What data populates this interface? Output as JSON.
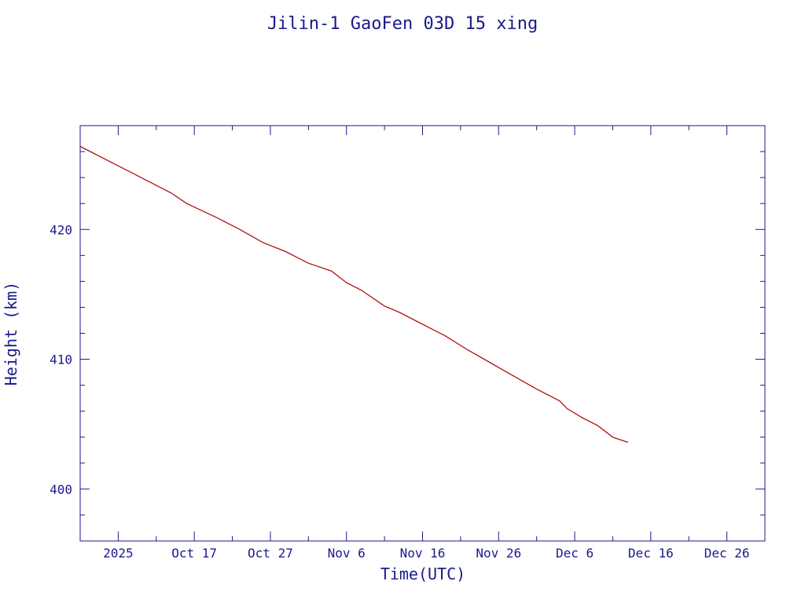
{
  "chart_data": {
    "type": "line",
    "title": "Jilin-1 GaoFen 03D 15 xing",
    "xlabel": "Time(UTC)",
    "ylabel": "Height (km)",
    "x_unit": "date (UTC)",
    "xlim": [
      "2025-10-02",
      "2025-12-31"
    ],
    "ylim": [
      396.0,
      428.0
    ],
    "x_tick_labels": [
      {
        "date": "2025-10-07",
        "label": "2025"
      },
      {
        "date": "2025-10-17",
        "label": "Oct 17"
      },
      {
        "date": "2025-10-27",
        "label": "Oct 27"
      },
      {
        "date": "2025-11-06",
        "label": "Nov  6"
      },
      {
        "date": "2025-11-16",
        "label": "Nov 16"
      },
      {
        "date": "2025-11-26",
        "label": "Nov 26"
      },
      {
        "date": "2025-12-06",
        "label": "Dec  6"
      },
      {
        "date": "2025-12-16",
        "label": "Dec 16"
      },
      {
        "date": "2025-12-26",
        "label": "Dec 26"
      }
    ],
    "x_major_ticks": [
      "2025-10-07",
      "2025-10-17",
      "2025-10-27",
      "2025-11-06",
      "2025-11-16",
      "2025-11-26",
      "2025-12-06",
      "2025-12-16",
      "2025-12-26"
    ],
    "x_minor_ticks": [
      "2025-10-12",
      "2025-10-22",
      "2025-11-01",
      "2025-11-11",
      "2025-11-21",
      "2025-12-01",
      "2025-12-11",
      "2025-12-21"
    ],
    "y_tick_labels": [
      {
        "value": 400,
        "label": "400"
      },
      {
        "value": 410,
        "label": "410"
      },
      {
        "value": 420,
        "label": "420"
      }
    ],
    "y_major_ticks": [
      400,
      410,
      420
    ],
    "y_minor_ticks": [
      398,
      402,
      404,
      406,
      408,
      412,
      414,
      416,
      418,
      422,
      424,
      426
    ],
    "grid": false,
    "colors": {
      "axis": "#1a1a8c",
      "series": "#b01010"
    },
    "series": [
      {
        "x": [
          "2025-10-02",
          "2025-10-05",
          "2025-10-08",
          "2025-10-11",
          "2025-10-14",
          "2025-10-16",
          "2025-10-20",
          "2025-10-23",
          "2025-10-26",
          "2025-10-29",
          "2025-11-01",
          "2025-11-04",
          "2025-11-06",
          "2025-11-08",
          "2025-11-11",
          "2025-11-13",
          "2025-11-15",
          "2025-11-17",
          "2025-11-19",
          "2025-11-22",
          "2025-11-25",
          "2025-11-28",
          "2025-12-01",
          "2025-12-04",
          "2025-12-05",
          "2025-12-07",
          "2025-12-09",
          "2025-12-11",
          "2025-12-12",
          "2025-12-13"
        ],
        "values": [
          426.4,
          425.5,
          424.6,
          423.7,
          422.8,
          422.0,
          420.9,
          420.0,
          419.0,
          418.3,
          417.4,
          416.8,
          415.9,
          415.3,
          414.1,
          413.6,
          413.0,
          412.4,
          411.8,
          410.7,
          409.7,
          408.7,
          407.7,
          406.8,
          406.2,
          405.5,
          404.9,
          404.0,
          403.8,
          403.6
        ]
      }
    ]
  }
}
